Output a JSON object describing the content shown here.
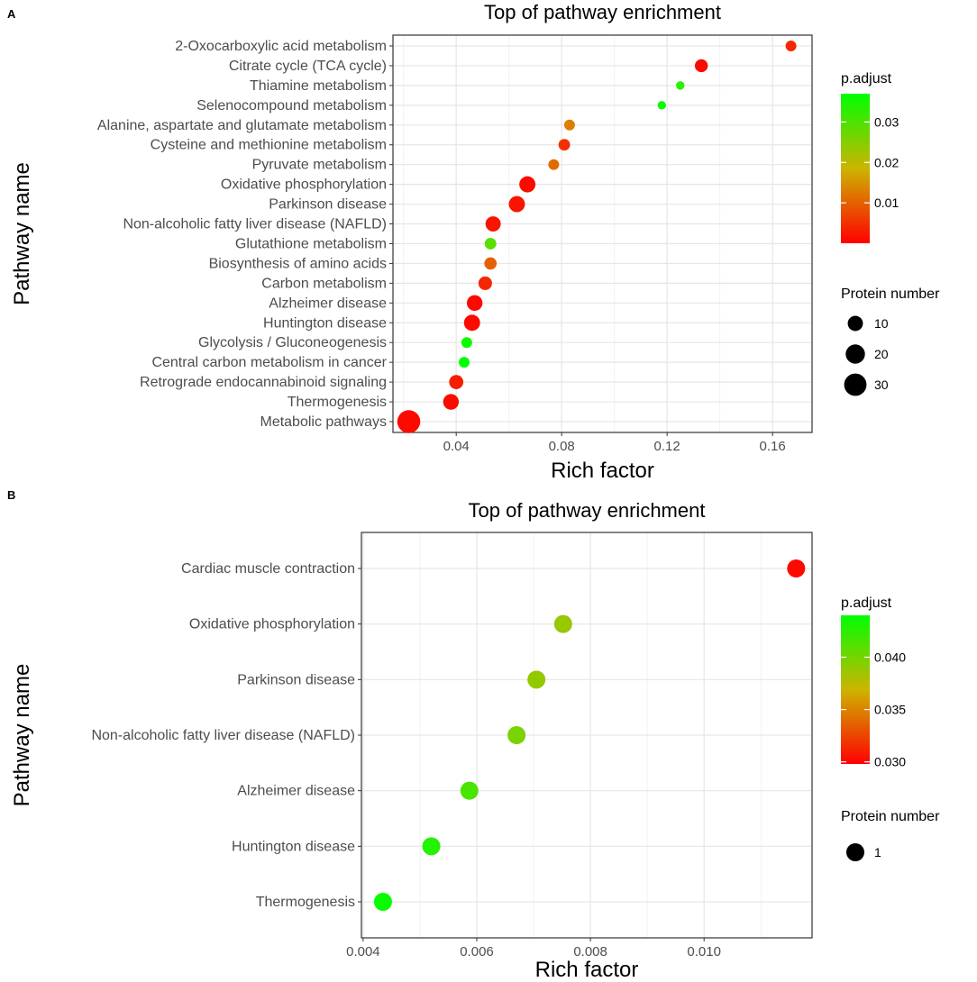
{
  "chart_data": [
    {
      "panel_label": "A",
      "type": "scatter",
      "title": "Top of pathway enrichment",
      "xlabel": "Rich factor",
      "ylabel": "Pathway name",
      "xlim": [
        0.016,
        0.175
      ],
      "xticks": [
        0.04,
        0.08,
        0.12,
        0.16
      ],
      "xtick_labels": [
        "0.04",
        "0.08",
        "0.12",
        "0.16"
      ],
      "grid": true,
      "points": [
        {
          "name": "2-Oxocarboxylic acid metabolism",
          "x": 0.167,
          "count": 3,
          "padj": 0.004
        },
        {
          "name": "Citrate cycle (TCA cycle)",
          "x": 0.133,
          "count": 6,
          "padj": 0.001
        },
        {
          "name": "Thiamine metabolism",
          "x": 0.125,
          "count": 1,
          "padj": 0.033
        },
        {
          "name": "Selenocompound metabolism",
          "x": 0.118,
          "count": 1,
          "padj": 0.036
        },
        {
          "name": "Alanine, aspartate and glutamate metabolism",
          "x": 0.083,
          "count": 3,
          "padj": 0.013
        },
        {
          "name": "Cysteine and methionine metabolism",
          "x": 0.081,
          "count": 4,
          "padj": 0.005
        },
        {
          "name": "Pyruvate metabolism",
          "x": 0.077,
          "count": 3,
          "padj": 0.011
        },
        {
          "name": "Oxidative phosphorylation",
          "x": 0.067,
          "count": 12,
          "padj": 0.001
        },
        {
          "name": "Parkinson disease",
          "x": 0.063,
          "count": 12,
          "padj": 0.002
        },
        {
          "name": "Non-alcoholic fatty liver disease (NAFLD)",
          "x": 0.054,
          "count": 10,
          "padj": 0.002
        },
        {
          "name": "Glutathione metabolism",
          "x": 0.053,
          "count": 4,
          "padj": 0.029
        },
        {
          "name": "Biosynthesis of amino acids",
          "x": 0.053,
          "count": 5,
          "padj": 0.01
        },
        {
          "name": "Carbon metabolism",
          "x": 0.051,
          "count": 7,
          "padj": 0.004
        },
        {
          "name": "Alzheimer disease",
          "x": 0.047,
          "count": 11,
          "padj": 0.001
        },
        {
          "name": "Huntington disease",
          "x": 0.046,
          "count": 12,
          "padj": 0.001
        },
        {
          "name": "Glycolysis / Gluconeogenesis",
          "x": 0.044,
          "count": 3,
          "padj": 0.036
        },
        {
          "name": "Central carbon metabolism in cancer",
          "x": 0.043,
          "count": 3,
          "padj": 0.037
        },
        {
          "name": "Retrograde endocannabinoid signaling",
          "x": 0.04,
          "count": 8,
          "padj": 0.003
        },
        {
          "name": "Thermogenesis",
          "x": 0.038,
          "count": 11,
          "padj": 0.001
        },
        {
          "name": "Metabolic pathways",
          "x": 0.022,
          "count": 32,
          "padj": 0.001
        }
      ],
      "legend_color": {
        "title": "p.adjust",
        "min": 0.0,
        "max": 0.037,
        "ticks": [
          0.01,
          0.02,
          0.03
        ],
        "tick_labels": [
          "0.01",
          "0.02",
          "0.03"
        ],
        "low_color": "#ff0000",
        "high_color": "#00ff00"
      },
      "legend_size": {
        "title": "Protein number",
        "values": [
          10,
          20,
          30
        ],
        "labels": [
          "10",
          "20",
          "30"
        ]
      }
    },
    {
      "panel_label": "B",
      "type": "scatter",
      "title": "Top of pathway enrichment",
      "xlabel": "Rich factor",
      "ylabel": "Pathway name",
      "xlim": [
        0.00397,
        0.0119
      ],
      "xticks": [
        0.004,
        0.006,
        0.008,
        0.01
      ],
      "xtick_labels": [
        "0.004",
        "0.006",
        "0.008",
        "0.010"
      ],
      "grid": true,
      "points": [
        {
          "name": "Cardiac muscle contraction",
          "x": 0.01162,
          "count": 1,
          "padj": 0.0302
        },
        {
          "name": "Oxidative phosphorylation",
          "x": 0.00752,
          "count": 1,
          "padj": 0.0387
        },
        {
          "name": "Parkinson disease",
          "x": 0.00705,
          "count": 1,
          "padj": 0.0389
        },
        {
          "name": "Non-alcoholic fatty liver disease (NAFLD)",
          "x": 0.0067,
          "count": 1,
          "padj": 0.0398
        },
        {
          "name": "Alzheimer disease",
          "x": 0.00587,
          "count": 1,
          "padj": 0.0415
        },
        {
          "name": "Huntington disease",
          "x": 0.0052,
          "count": 1,
          "padj": 0.0428
        },
        {
          "name": "Thermogenesis",
          "x": 0.00435,
          "count": 1,
          "padj": 0.0438
        }
      ],
      "legend_color": {
        "title": "p.adjust",
        "min": 0.0298,
        "max": 0.044,
        "ticks": [
          0.03,
          0.035,
          0.04
        ],
        "tick_labels": [
          "0.030",
          "0.035",
          "0.040"
        ],
        "low_color": "#ff0000",
        "high_color": "#00ff00"
      },
      "legend_size": {
        "title": "Protein number",
        "values": [
          1
        ],
        "labels": [
          "1"
        ]
      }
    }
  ]
}
